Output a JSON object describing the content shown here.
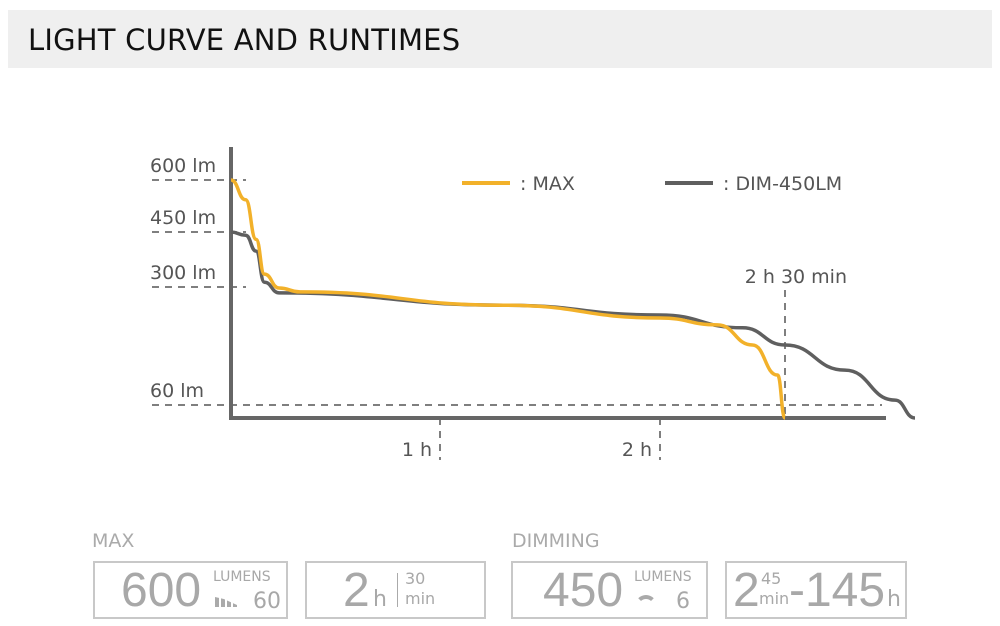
{
  "header": {
    "title": "LIGHT CURVE AND RUNTIMES"
  },
  "chart_data": {
    "type": "line",
    "xlabel": "",
    "ylabel": "",
    "x_ticks": [
      {
        "value": 1,
        "label": "1 h"
      },
      {
        "value": 2,
        "label": "2 h"
      }
    ],
    "y_ticks": [
      {
        "value": 600,
        "label": "600 lm"
      },
      {
        "value": 450,
        "label": "450 lm"
      },
      {
        "value": 300,
        "label": "300 lm"
      },
      {
        "value": 60,
        "label": "60 lm"
      }
    ],
    "annotations": [
      {
        "x": 2.5,
        "label": "2 h 30 min"
      }
    ],
    "legend": "top-right",
    "series": [
      {
        "name": ": MAX",
        "color": "#f2b12a",
        "x": [
          0,
          0.07,
          0.12,
          0.16,
          0.23,
          0.33,
          1.29,
          2.0,
          2.23,
          2.37,
          2.47,
          2.5
        ],
        "y": [
          600,
          543,
          430,
          335,
          298,
          290,
          263,
          237,
          223,
          182,
          121,
          0
        ]
      },
      {
        "name": ": DIM-450LM",
        "color": "#5f5f5f",
        "x": [
          0,
          0.07,
          0.12,
          0.16,
          0.23,
          1.29,
          2.0,
          2.33,
          2.5,
          2.62,
          2.72,
          2.76
        ],
        "y": [
          450,
          441,
          398,
          313,
          288,
          263,
          243,
          217,
          182,
          131,
          70,
          0
        ]
      }
    ]
  },
  "modes": [
    {
      "label": "MAX",
      "lumens": "600",
      "lumens_unit": "LUMENS",
      "icon": "battery-bars-icon",
      "low": "60",
      "runtime_h": "2",
      "h": "h",
      "runtime_min": "30",
      "min": "min"
    },
    {
      "label": "DIMMING",
      "lumens": "450",
      "lumens_unit": "LUMENS",
      "icon": "dimming-arc-icon",
      "low": "6",
      "rt_a": "2",
      "rt_a_min": "45",
      "min": "min",
      "rt_b": "-145",
      "h": "h"
    }
  ]
}
